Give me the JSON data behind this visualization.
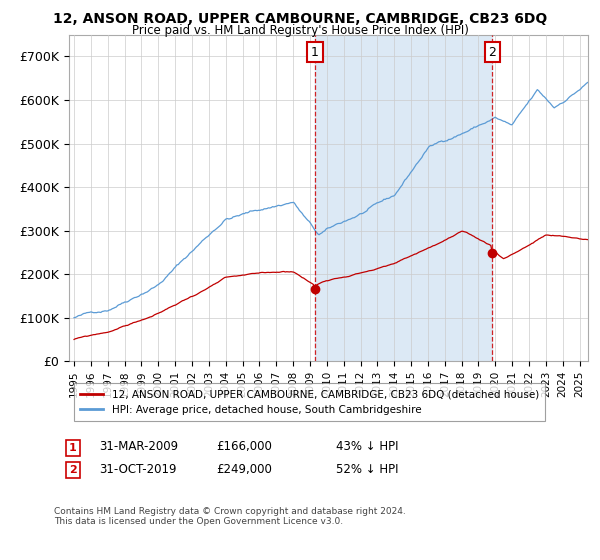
{
  "title": "12, ANSON ROAD, UPPER CAMBOURNE, CAMBRIDGE, CB23 6DQ",
  "subtitle": "Price paid vs. HM Land Registry's House Price Index (HPI)",
  "legend_line1": "12, ANSON ROAD, UPPER CAMBOURNE, CAMBRIDGE, CB23 6DQ (detached house)",
  "legend_line2": "HPI: Average price, detached house, South Cambridgeshire",
  "annotation1_label": "1",
  "annotation1_date": "31-MAR-2009",
  "annotation1_price": "£166,000",
  "annotation1_pct": "43% ↓ HPI",
  "annotation2_label": "2",
  "annotation2_date": "31-OCT-2019",
  "annotation2_price": "£249,000",
  "annotation2_pct": "52% ↓ HPI",
  "footer": "Contains HM Land Registry data © Crown copyright and database right 2024.\nThis data is licensed under the Open Government Licence v3.0.",
  "hpi_color": "#5b9bd5",
  "price_color": "#c00000",
  "shade_color": "#dce9f5",
  "annotation_box_color": "#cc0000",
  "ylim": [
    0,
    750000
  ],
  "yticks": [
    0,
    100000,
    200000,
    300000,
    400000,
    500000,
    600000,
    700000
  ],
  "ytick_labels": [
    "£0",
    "£100K",
    "£200K",
    "£300K",
    "£400K",
    "£500K",
    "£600K",
    "£700K"
  ],
  "sale1_year": 2009.25,
  "sale2_year": 2019.833,
  "sale1_price": 166000,
  "sale2_price": 249000,
  "xstart": 1995.0,
  "xend": 2025.5
}
